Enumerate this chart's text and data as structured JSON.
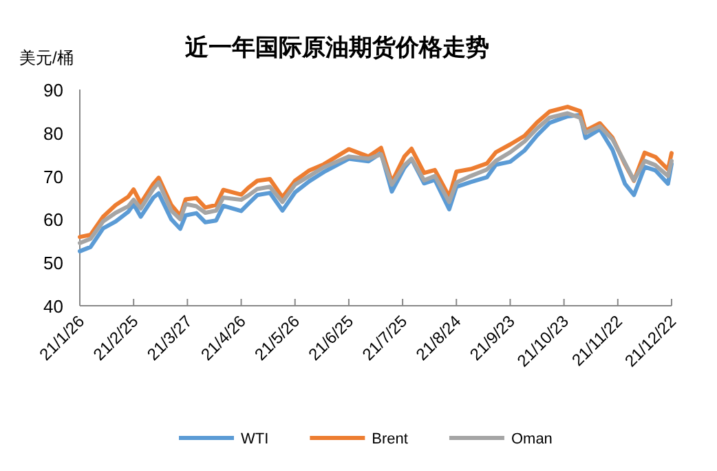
{
  "chart_data": {
    "type": "line",
    "title": "近一年国际原油期货价格走势",
    "ylabel": "美元/桶",
    "x": [
      "--01-26",
      "--02-01",
      "--02-08",
      "--02-15",
      "--02-22",
      "--02-25",
      "--03-01",
      "--03-08",
      "--03-11",
      "--03-18",
      "--03-23",
      "--03-26",
      "--04-01",
      "--04-06",
      "--04-12",
      "--04-16",
      "--04-26",
      "--04-30",
      "--05-05",
      "--05-12",
      "--05-19",
      "--05-26",
      "--06-03",
      "--06-11",
      "--06-25",
      "--07-06",
      "--07-13",
      "--07-19",
      "--07-26",
      "--07-30",
      "--08-06",
      "--08-12",
      "--08-20",
      "--08-24",
      "--09-01",
      "--09-10",
      "--09-15",
      "--09-23",
      "--10-01",
      "--10-08",
      "--10-15",
      "--10-25",
      "--11-01",
      "--11-04",
      "--11-12",
      "--11-19",
      "--11-26",
      "--12-01",
      "--12-07",
      "--12-13",
      "--12-20",
      "--12-22"
    ],
    "series": [
      {
        "name": "WTI",
        "color": "#5b9bd5",
        "values": [
          52.6,
          53.6,
          57.9,
          59.5,
          61.7,
          63.5,
          60.6,
          65.0,
          66.0,
          60.0,
          57.8,
          60.9,
          61.4,
          59.3,
          59.7,
          63.1,
          61.9,
          63.6,
          65.6,
          66.1,
          62.0,
          66.2,
          68.8,
          70.9,
          74.0,
          73.4,
          75.3,
          66.4,
          71.9,
          73.9,
          68.3,
          69.1,
          62.3,
          67.5,
          68.6,
          69.7,
          72.6,
          73.3,
          75.9,
          79.4,
          82.3,
          83.8,
          84.1,
          78.8,
          80.8,
          76.1,
          68.2,
          65.6,
          72.1,
          71.3,
          68.2,
          72.8
        ]
      },
      {
        "name": "Brent",
        "color": "#ed7d31",
        "values": [
          55.9,
          56.4,
          60.6,
          63.3,
          65.2,
          66.9,
          63.7,
          68.2,
          69.6,
          63.3,
          60.8,
          64.6,
          64.9,
          62.7,
          63.3,
          66.8,
          65.7,
          67.3,
          68.9,
          69.3,
          65.1,
          68.9,
          71.3,
          72.7,
          76.2,
          74.5,
          76.5,
          68.6,
          74.5,
          76.3,
          70.7,
          71.4,
          65.2,
          71.0,
          71.6,
          72.9,
          75.5,
          77.3,
          79.3,
          82.4,
          84.9,
          86.0,
          85.0,
          80.5,
          82.2,
          78.9,
          72.7,
          68.9,
          75.4,
          74.4,
          71.5,
          75.3
        ]
      },
      {
        "name": "Oman",
        "color": "#a5a5a5",
        "values": [
          54.5,
          55.5,
          59.5,
          61.5,
          63.0,
          64.5,
          62.5,
          67.0,
          68.5,
          62.0,
          60.0,
          63.5,
          63.0,
          61.5,
          62.0,
          65.0,
          64.5,
          65.5,
          67.0,
          67.5,
          64.0,
          68.0,
          70.0,
          72.0,
          74.5,
          74.0,
          75.0,
          68.0,
          72.5,
          74.0,
          69.0,
          70.0,
          64.0,
          68.5,
          70.0,
          71.5,
          73.5,
          75.5,
          78.0,
          81.0,
          83.5,
          84.5,
          83.5,
          80.0,
          81.5,
          78.5,
          73.0,
          69.0,
          73.5,
          72.5,
          70.0,
          73.5
        ]
      }
    ],
    "xlim": [
      "--01-26",
      "--12-22"
    ],
    "xticks": [
      {
        "value": "--01-26",
        "label": "21/1/26"
      },
      {
        "value": "--02-25",
        "label": "21/2/25"
      },
      {
        "value": "--03-27",
        "label": "21/3/27"
      },
      {
        "value": "--04-26",
        "label": "21/4/26"
      },
      {
        "value": "--05-26",
        "label": "21/5/26"
      },
      {
        "value": "--06-25",
        "label": "21/6/25"
      },
      {
        "value": "--07-25",
        "label": "21/7/25"
      },
      {
        "value": "--08-24",
        "label": "21/8/24"
      },
      {
        "value": "--09-23",
        "label": "21/9/23"
      },
      {
        "value": "--10-23",
        "label": "21/10/23"
      },
      {
        "value": "--11-22",
        "label": "21/11/22"
      },
      {
        "value": "--12-22",
        "label": "21/12/22"
      }
    ],
    "ylim": [
      40,
      90
    ],
    "yticks": [
      40,
      50,
      60,
      70,
      80,
      90
    ],
    "legend": "bottom",
    "grid": false
  }
}
